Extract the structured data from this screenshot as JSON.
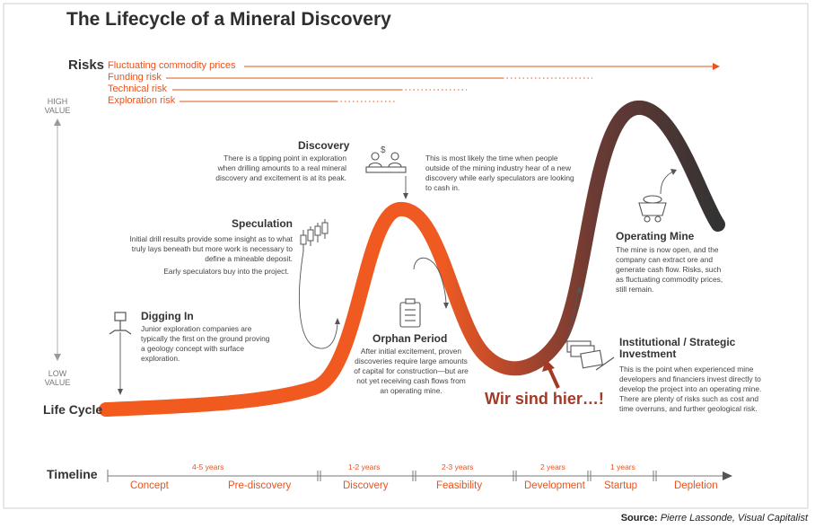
{
  "title": "The Lifecycle of a Mineral Discovery",
  "risks": {
    "label": "Risks",
    "items": [
      "Fluctuating commodity prices",
      "Funding risk",
      "Technical risk",
      "Exploration risk"
    ]
  },
  "value_axis": {
    "high": "HIGH\nVALUE",
    "low": "LOW\nVALUE"
  },
  "life_cycle_label": "Life Cycle",
  "sections": {
    "digging_in": {
      "title": "Digging In",
      "body": "Junior exploration companies are typically the first on the ground proving a geology concept with surface exploration."
    },
    "speculation": {
      "title": "Speculation",
      "body": "Initial drill results provide some insight as to what truly lays beneath but more work is necessary to define a mineable deposit.",
      "body2": "Early speculators buy into the project."
    },
    "discovery": {
      "title": "Discovery",
      "body": "There is a tipping point in exploration when drilling amounts to a real mineral discovery and excitement is at its peak.",
      "body_right": "This is most likely the time when people outside of the mining industry hear of a new discovery while early speculators are looking to cash in."
    },
    "orphan": {
      "title": "Orphan Period",
      "body": "After initial excitement, proven discoveries require large amounts of capital for construction—but are not yet receiving cash flows from an operating mine."
    },
    "operating": {
      "title": "Operating Mine",
      "body": "The mine is now open, and the company can extract ore and generate cash flow. Risks, such as fluctuating commodity prices, still remain."
    },
    "institutional": {
      "title": "Institutional / Strategic Investment",
      "body": "This is the point when experienced mine developers and financiers invest directly to develop the project into an operating mine. There are plenty of risks such as cost and time overruns, and further geological risk."
    }
  },
  "annotation": "Wir sind hier…!",
  "timeline": {
    "label": "Timeline",
    "durations": [
      "4-5 years",
      "1-2 years",
      "2-3 years",
      "2 years",
      "1 years"
    ],
    "phases": [
      "Concept",
      "Pre-discovery",
      "Discovery",
      "Feasibility",
      "Development",
      "Startup",
      "Depletion"
    ]
  },
  "source": {
    "label": "Source:",
    "text": "Pierre Lassonde, Visual Capitalist"
  },
  "colors": {
    "accent": "#e8531f",
    "dark": "#3a3a3a",
    "annotation": "#a23a26"
  }
}
